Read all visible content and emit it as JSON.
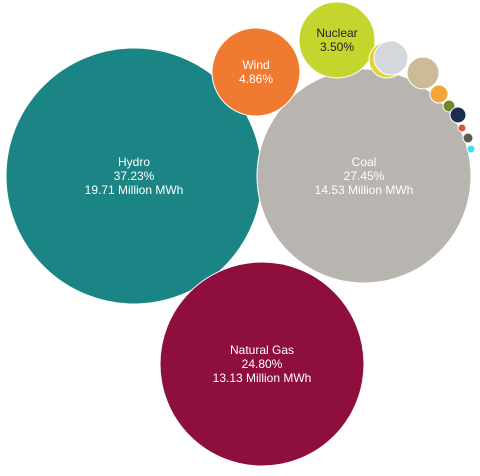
{
  "chart_data": {
    "type": "bubble",
    "title": "",
    "bubbles": [
      {
        "name": "Hydro",
        "percent": "37.23%",
        "value": "19.71 Million MWh",
        "color": "#1B8484"
      },
      {
        "name": "Coal",
        "percent": "27.45%",
        "value": "14.53 Million MWh",
        "color": "#B8B4B0"
      },
      {
        "name": "Natural Gas",
        "percent": "24.80%",
        "value": "13.13 Million MWh",
        "color": "#8E0E3E"
      },
      {
        "name": "Wind",
        "percent": "4.86%",
        "value": "",
        "color": "#F07A30"
      },
      {
        "name": "Nuclear",
        "percent": "3.50%",
        "value": "",
        "color": "#C4D62E"
      },
      {
        "name": "",
        "percent": "",
        "value": "",
        "color": "#E0D23A"
      },
      {
        "name": "",
        "percent": "",
        "value": "",
        "color": "#D4D8DC"
      },
      {
        "name": "",
        "percent": "",
        "value": "",
        "color": "#CDBB98"
      },
      {
        "name": "",
        "percent": "",
        "value": "",
        "color": "#F4A53A"
      },
      {
        "name": "",
        "percent": "",
        "value": "",
        "color": "#6E8A2E"
      },
      {
        "name": "",
        "percent": "",
        "value": "",
        "color": "#1E2E4E"
      },
      {
        "name": "",
        "percent": "",
        "value": "",
        "color": "#E0533A"
      },
      {
        "name": "",
        "percent": "",
        "value": "",
        "color": "#5E5A52"
      },
      {
        "name": "",
        "percent": "",
        "value": "",
        "color": "#40E0E8"
      }
    ]
  }
}
